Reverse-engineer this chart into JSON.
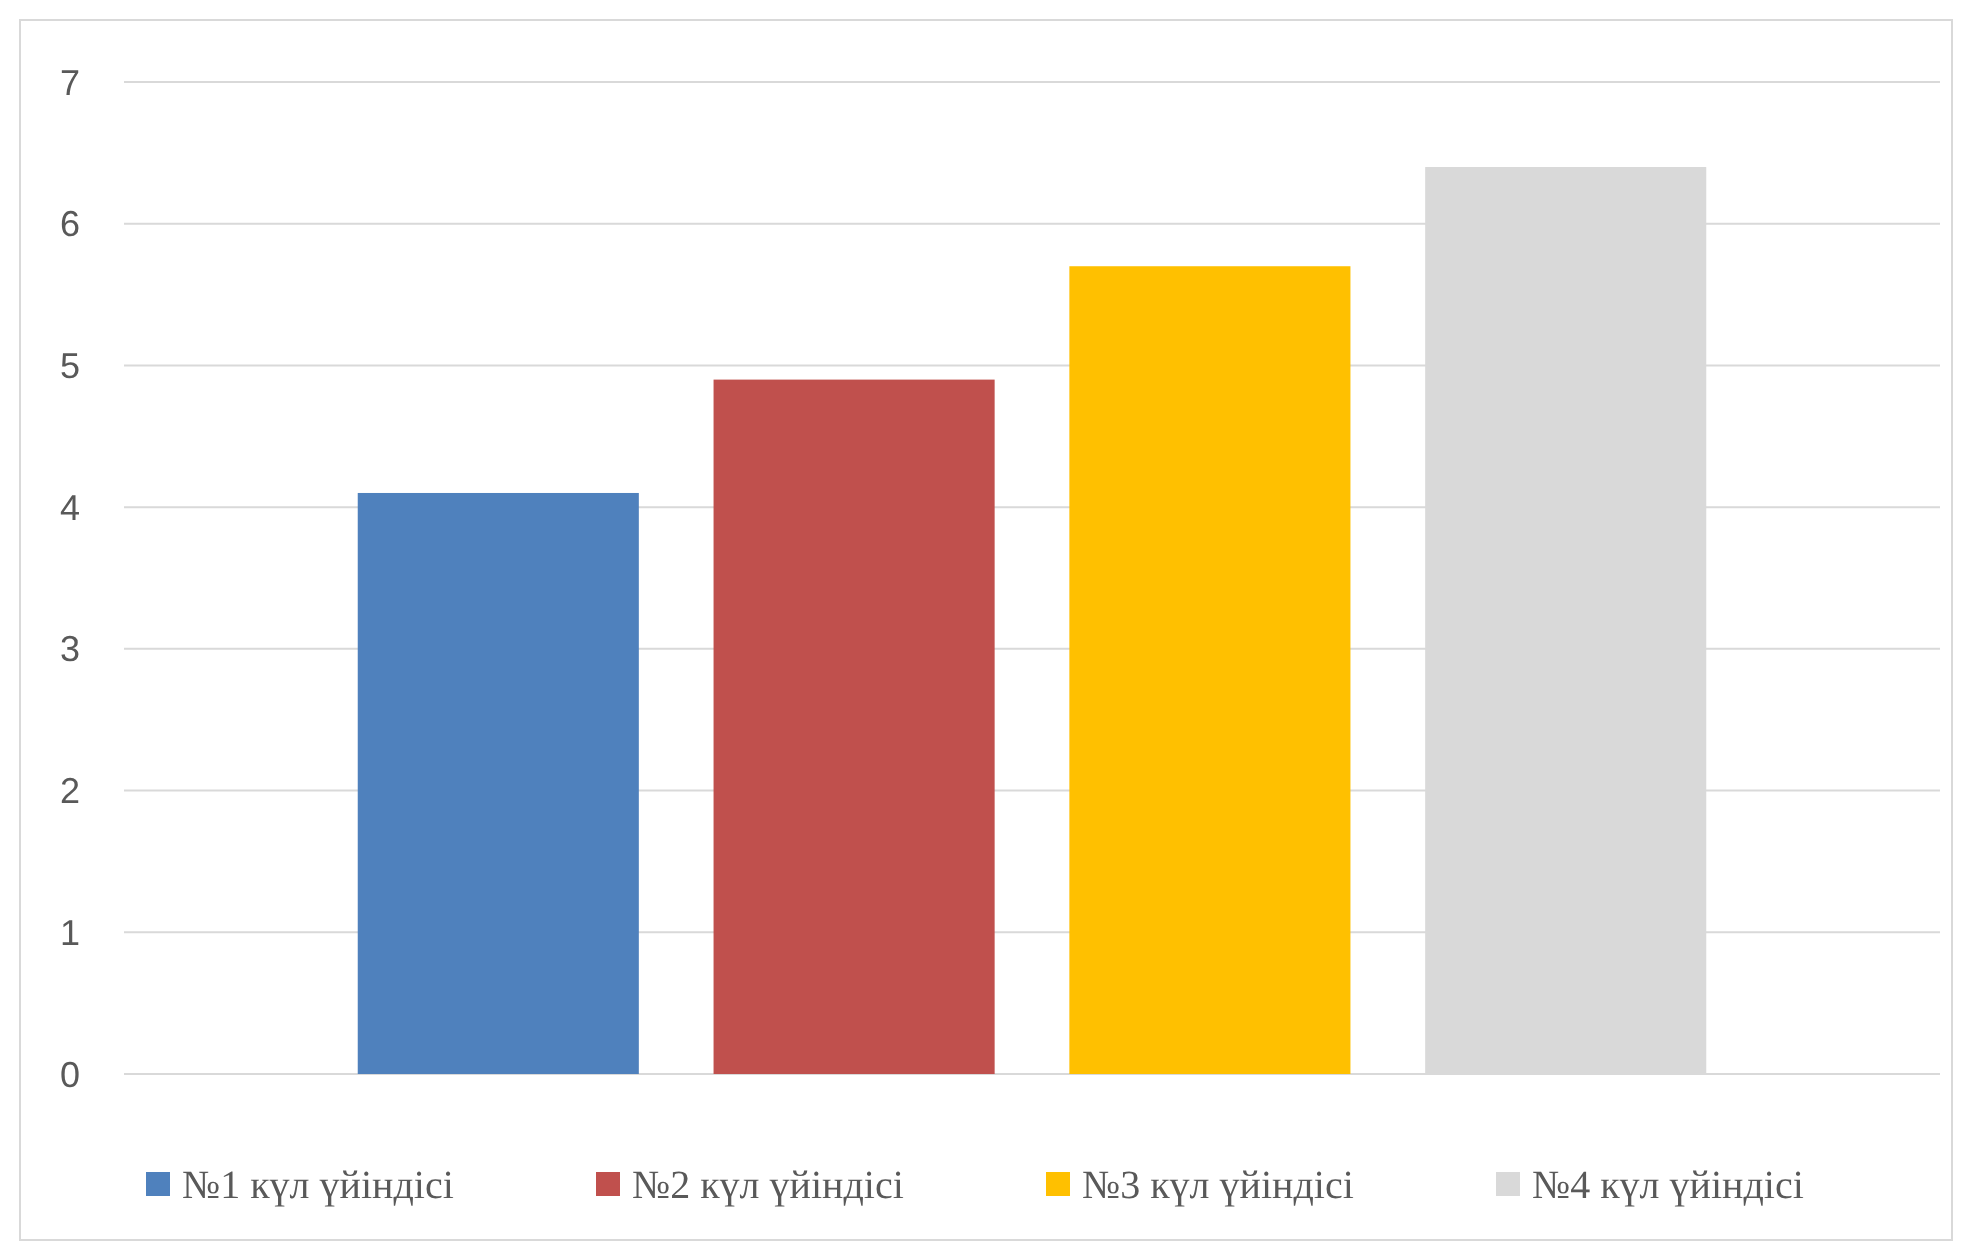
{
  "chart_data": {
    "type": "bar",
    "categories": [
      null
    ],
    "series": [
      {
        "name": "№1 күл үйіндісі",
        "color": "#4f81bd",
        "values": [
          4.1
        ]
      },
      {
        "name": "№2 күл үйіндісі",
        "color": "#c0504d",
        "values": [
          4.9
        ]
      },
      {
        "name": "№3 күл үйіндісі",
        "color": "#ffc000",
        "values": [
          5.7
        ]
      },
      {
        "name": "№4 күл үйіндісі",
        "color": "#d9d9d9",
        "values": [
          6.4
        ]
      }
    ],
    "ylim": [
      0,
      7
    ],
    "yticks": [
      0,
      1,
      2,
      3,
      4,
      5,
      6,
      7
    ],
    "grid": "y",
    "legend": "bottom"
  }
}
